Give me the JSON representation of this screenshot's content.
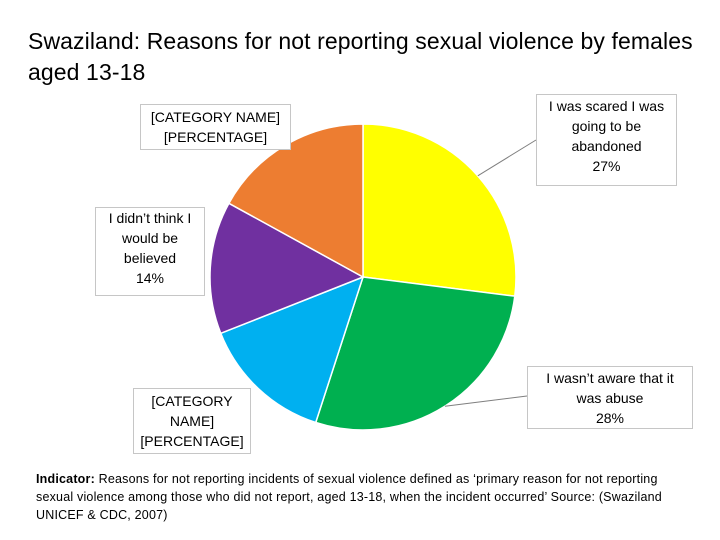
{
  "chart_data": {
    "type": "pie",
    "title": "Swaziland: Reasons for not reporting sexual violence by females aged 13-18",
    "slices": [
      {
        "label_lines": [
          "I was scared I was",
          "going to be",
          "abandoned",
          "27%"
        ],
        "value": 27,
        "color": "#FFFF00"
      },
      {
        "label_lines": [
          "I wasn’t aware that it",
          "was abuse",
          "28%"
        ],
        "value": 28,
        "color": "#00B050"
      },
      {
        "label_lines": [
          "[CATEGORY",
          "NAME]",
          "[PERCENTAGE]"
        ],
        "value": 14,
        "color": "#00B0F0"
      },
      {
        "label_lines": [
          "I didn’t think I",
          "would be",
          "believed",
          "14%"
        ],
        "value": 14,
        "color": "#7030A0"
      },
      {
        "label_lines": [
          "[CATEGORY NAME]",
          "[PERCENTAGE]"
        ],
        "value": 17,
        "color": "#ED7D31"
      }
    ],
    "legend": "none"
  },
  "footnote": {
    "label": "Indicator:",
    "text": " Reasons for not reporting incidents of sexual violence defined as ‘primary reason for not reporting sexual violence among those who did not report, aged 13-18, when the incident occurred’ Source: (Swaziland UNICEF & CDC, 2007)"
  }
}
